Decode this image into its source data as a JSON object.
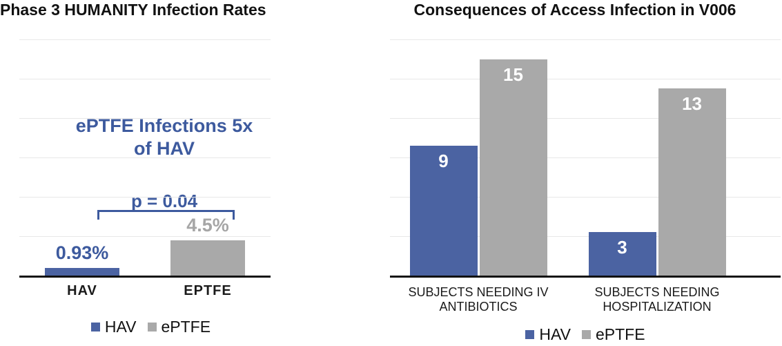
{
  "chart_data": [
    {
      "id": "infection-rates",
      "type": "bar",
      "title": "Phase 3 HUMANITY Infection Rates",
      "categories": [
        "HAV",
        "EPTFE"
      ],
      "values": [
        0.93,
        4.5
      ],
      "value_labels": [
        "0.93%",
        "4.5%"
      ],
      "bar_colors": [
        "#4b63a2",
        "#a9a9a9"
      ],
      "value_label_colors": [
        "#3d5a9e",
        "#a6a6a6"
      ],
      "annotation_line1": "ePTFE Infections 5x",
      "annotation_line2": "of HAV",
      "p_label": "p = 0.04",
      "xlabel": "",
      "ylabel": "",
      "ylim": [
        0,
        30
      ],
      "gridlines": true,
      "legend_position": "bottom",
      "legend_entries": [
        {
          "label": "HAV",
          "color": "#4b63a2"
        },
        {
          "label": "ePTFE",
          "color": "#a9a9a9"
        }
      ]
    },
    {
      "id": "consequences",
      "type": "bar",
      "title": "Consequences of Access Infection in V006",
      "categories": [
        "SUBJECTS NEEDING IV ANTIBIOTICS",
        "SUBJECTS NEEDING HOSPITALIZATION"
      ],
      "series": [
        {
          "name": "HAV",
          "color": "#4b63a2",
          "values": [
            9,
            3
          ]
        },
        {
          "name": "ePTFE",
          "color": "#a9a9a9",
          "values": [
            15,
            13
          ]
        }
      ],
      "bar_value_label_color": "#ffffff",
      "xlabel": "",
      "ylabel": "",
      "ylim": [
        0,
        16.4
      ],
      "gridlines": true,
      "legend_position": "bottom",
      "legend_entries": [
        {
          "label": "HAV",
          "color": "#4b63a2"
        },
        {
          "label": "ePTFE",
          "color": "#a9a9a9"
        }
      ]
    }
  ]
}
